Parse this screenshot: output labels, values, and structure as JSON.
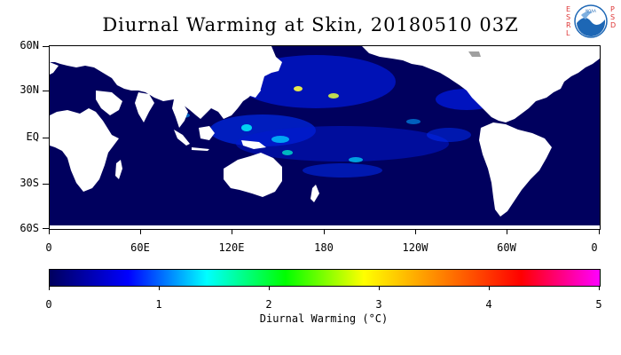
{
  "title": "Diurnal Warming at Skin, 20180510 03Z",
  "logo": {
    "left_letters": [
      "E",
      "S",
      "R",
      "L"
    ],
    "right_letters": [
      "P",
      "S",
      "D"
    ],
    "badge_text": "NOAA",
    "badge_color": "#1d67b5"
  },
  "map": {
    "ocean_color": "#00005e",
    "land_color": "#ffffff",
    "lat_labels": [
      "60N",
      "30N",
      "EQ",
      "30S",
      "60S"
    ],
    "lon_labels": [
      "0",
      "60E",
      "120E",
      "180",
      "120W",
      "60W",
      "0"
    ]
  },
  "colorbar": {
    "labels": [
      "0",
      "1",
      "2",
      "3",
      "4",
      "5"
    ],
    "title": "Diurnal Warming (°C)",
    "colors": [
      "#00005e",
      "#0000ff",
      "#00ffff",
      "#00ff00",
      "#ffff00",
      "#ff8000",
      "#ff0000",
      "#ff00ff"
    ]
  }
}
